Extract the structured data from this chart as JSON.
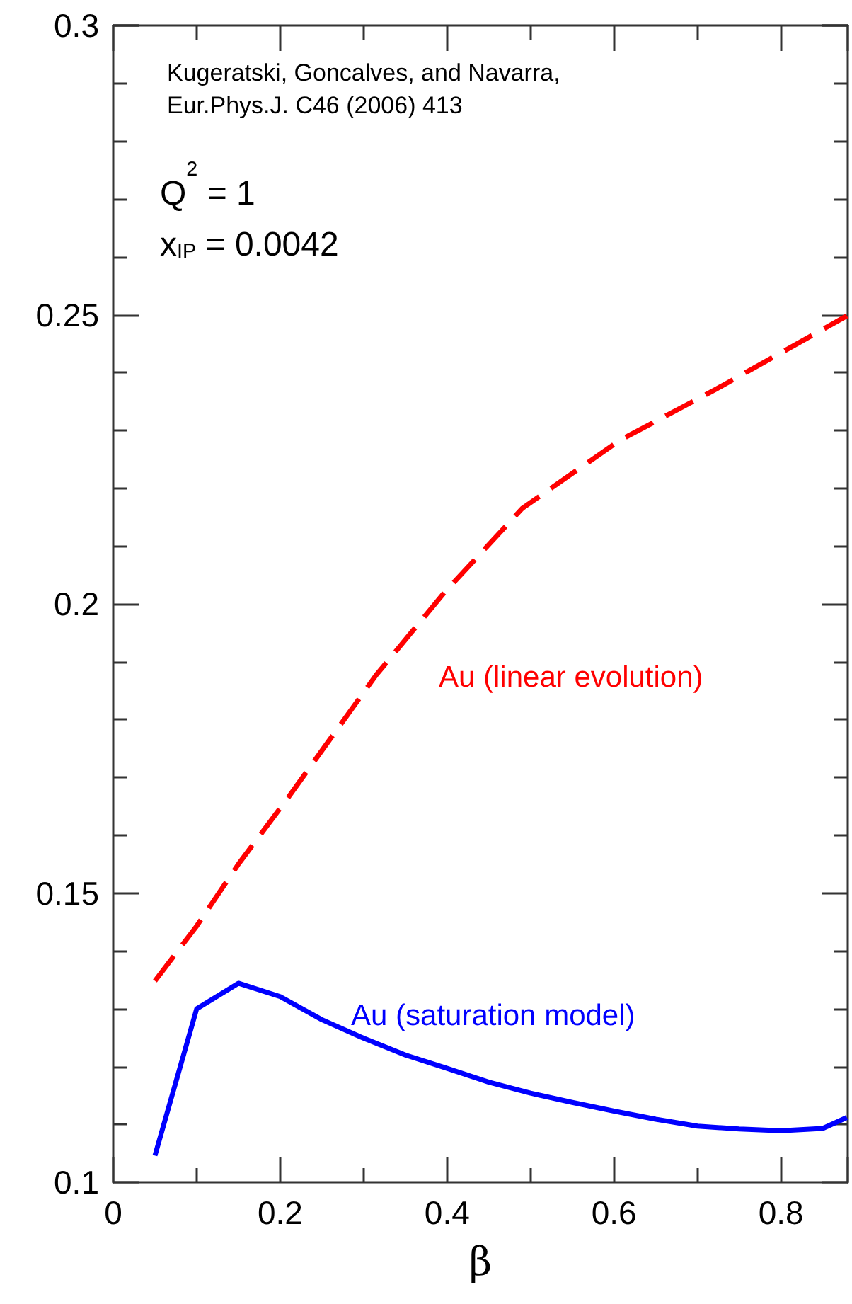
{
  "chart_data": {
    "type": "line",
    "xlabel": "β",
    "annotations": [
      "Kugeratski, Goncalves, and Navarra,\nEur.Phys.J. C46 (2006) 413",
      "Q$^{2}$ = 1",
      "x$_{IP}$ = 0.0042"
    ],
    "series": [
      {
        "name": "Au (linear evolution)",
        "color": "#ff0000",
        "line_style": "dashed",
        "x": [
          0.05,
          0.1,
          0.15,
          0.21,
          0.315,
          0.397,
          0.49,
          0.606,
          0.722,
          0.879
        ],
        "values": [
          0.1348,
          0.1443,
          0.155,
          0.1666,
          0.1877,
          0.202,
          0.2165,
          0.2282,
          0.2371,
          0.2498
        ]
      },
      {
        "name": "Au (saturation model)",
        "color": "#0000ff",
        "line_style": "solid",
        "x": [
          0.05,
          0.1,
          0.15,
          0.2,
          0.25,
          0.3,
          0.35,
          0.4,
          0.45,
          0.5,
          0.55,
          0.6,
          0.65,
          0.7,
          0.75,
          0.8,
          0.85,
          0.879
        ],
        "values": [
          0.1046,
          0.13,
          0.1344,
          0.1321,
          0.1281,
          0.1249,
          0.122,
          0.1197,
          0.1173,
          0.1154,
          0.1138,
          0.1123,
          0.1109,
          0.1097,
          0.1092,
          0.1089,
          0.1093,
          0.1112
        ]
      }
    ],
    "xlim": [
      0,
      0.88
    ],
    "xticks": [
      0,
      0.2,
      0.4,
      0.6,
      0.8
    ],
    "ylim": [
      0.1,
      0.3
    ],
    "yticks": [
      0.1,
      0.15,
      0.2,
      0.25,
      0.3
    ],
    "grid": false,
    "legend": false,
    "marker": "none"
  }
}
